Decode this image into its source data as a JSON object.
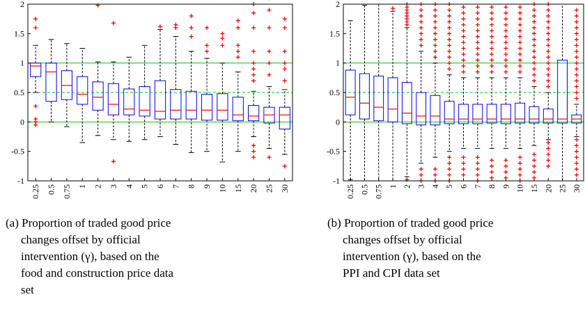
{
  "chart_data": [
    {
      "type": "box",
      "categories": [
        "0.25",
        "0.5",
        "0.75",
        "1",
        "2",
        "3",
        "4",
        "5",
        "6",
        "7",
        "8",
        "9",
        "10",
        "15",
        "20",
        "25",
        "30"
      ],
      "boxes": [
        {
          "whislo": 0.5,
          "q1": 0.77,
          "med": 0.95,
          "q3": 1.0,
          "whishi": 1.3,
          "fliers": [
            1.75,
            1.6,
            0.27,
            0.05,
            0.0,
            -0.05
          ]
        },
        {
          "whislo": 0.0,
          "q1": 0.35,
          "med": 0.85,
          "q3": 1.0,
          "whishi": 1.4,
          "fliers": []
        },
        {
          "whislo": -0.08,
          "q1": 0.38,
          "med": 0.62,
          "q3": 0.87,
          "whishi": 1.33,
          "fliers": []
        },
        {
          "whislo": -0.35,
          "q1": 0.3,
          "med": 0.47,
          "q3": 0.77,
          "whishi": 1.25,
          "fliers": []
        },
        {
          "whislo": -0.23,
          "q1": 0.2,
          "med": 0.42,
          "q3": 0.68,
          "whishi": 1.02,
          "fliers": [
            1.98
          ]
        },
        {
          "whislo": -0.3,
          "q1": 0.12,
          "med": 0.3,
          "q3": 0.65,
          "whishi": 1.02,
          "fliers": [
            1.68,
            -0.67
          ]
        },
        {
          "whislo": -0.33,
          "q1": 0.12,
          "med": 0.22,
          "q3": 0.56,
          "whishi": 1.1,
          "fliers": []
        },
        {
          "whislo": -0.3,
          "q1": 0.1,
          "med": 0.2,
          "q3": 0.6,
          "whishi": 1.3,
          "fliers": []
        },
        {
          "whislo": -0.25,
          "q1": 0.05,
          "med": 0.18,
          "q3": 0.7,
          "whishi": 1.57,
          "fliers": [
            1.62
          ]
        },
        {
          "whislo": -0.38,
          "q1": 0.05,
          "med": 0.2,
          "q3": 0.55,
          "whishi": 1.45,
          "fliers": [
            1.6,
            1.65
          ]
        },
        {
          "whislo": -0.52,
          "q1": 0.05,
          "med": 0.2,
          "q3": 0.52,
          "whishi": 1.2,
          "fliers": [
            1.45,
            1.6,
            1.8
          ]
        },
        {
          "whislo": -0.5,
          "q1": 0.03,
          "med": 0.2,
          "q3": 0.47,
          "whishi": 1.08,
          "fliers": [
            1.2,
            1.3,
            1.6
          ]
        },
        {
          "whislo": -0.68,
          "q1": 0.03,
          "med": 0.2,
          "q3": 0.48,
          "whishi": 1.0,
          "fliers": [
            1.3,
            1.42,
            1.5
          ]
        },
        {
          "whislo": -0.5,
          "q1": 0.02,
          "med": 0.12,
          "q3": 0.42,
          "whishi": 0.85,
          "fliers": [
            1.1,
            1.2,
            1.3,
            1.6,
            1.72
          ]
        },
        {
          "whislo": -0.25,
          "q1": 0.02,
          "med": 0.1,
          "q3": 0.28,
          "whishi": 0.52,
          "fliers": [
            0.7,
            0.8,
            0.9,
            1.0,
            1.2,
            1.6,
            1.85,
            2.0,
            -0.4,
            -0.5,
            -0.6
          ]
        },
        {
          "whislo": -0.45,
          "q1": -0.02,
          "med": 0.12,
          "q3": 0.25,
          "whishi": 0.6,
          "fliers": [
            0.8,
            1.0,
            1.2,
            1.6,
            1.9,
            -0.6
          ]
        },
        {
          "whislo": -0.55,
          "q1": -0.12,
          "med": 0.12,
          "q3": 0.25,
          "whishi": 0.55,
          "fliers": [
            0.7,
            0.9,
            1.0,
            1.2,
            1.6,
            1.75,
            -0.75
          ]
        }
      ],
      "ylim": [
        -1,
        2
      ],
      "yticks": [
        -1,
        -0.5,
        0,
        0.5,
        1,
        1.5,
        2
      ],
      "reference_lines": [
        {
          "value": 0,
          "style": "solid"
        },
        {
          "value": 0.5,
          "style": "dashed"
        },
        {
          "value": 1,
          "style": "solid"
        }
      ],
      "box_color": "#0000ff",
      "median_color": "#ff0000",
      "flier_color": "#ff0000",
      "reference_color": "#00cc00",
      "caption": [
        "(a) Proportion of traded good price",
        "changes offset by official",
        "intervention (γ), based on the",
        "food and construction price data",
        "set"
      ]
    },
    {
      "type": "box",
      "categories": [
        "0.25",
        "0.5",
        "0.75",
        "1",
        "2",
        "3",
        "4",
        "5",
        "6",
        "7",
        "8",
        "9",
        "10",
        "15",
        "20",
        "25",
        "30"
      ],
      "boxes": [
        {
          "whislo": -0.98,
          "q1": 0.12,
          "med": 0.42,
          "q3": 0.88,
          "whishi": 1.72,
          "fliers": []
        },
        {
          "whislo": -1,
          "q1": 0.05,
          "med": 0.32,
          "q3": 0.82,
          "whishi": 1.98,
          "fliers": []
        },
        {
          "whislo": -1,
          "q1": 0.02,
          "med": 0.25,
          "q3": 0.78,
          "whishi": 2,
          "fliers": []
        },
        {
          "whislo": -1,
          "q1": 0.0,
          "med": 0.22,
          "q3": 0.75,
          "whishi": 1.88,
          "fliers": [
            1.93
          ]
        },
        {
          "whislo": -0.93,
          "q1": -0.03,
          "med": 0.15,
          "q3": 0.67,
          "whishi": 1.6,
          "fliers": [
            1.65,
            1.7,
            1.75,
            1.8,
            1.85,
            1.9,
            1.95,
            2.0,
            -0.98
          ]
        },
        {
          "whislo": -0.7,
          "q1": -0.05,
          "med": 0.1,
          "q3": 0.5,
          "whishi": 1.2,
          "fliers": [
            1.3,
            1.4,
            1.5,
            1.6,
            1.7,
            1.8,
            1.9,
            2.0,
            -0.8,
            -0.9,
            -1.0
          ]
        },
        {
          "whislo": -0.6,
          "q1": -0.05,
          "med": 0.1,
          "q3": 0.45,
          "whishi": 1.0,
          "fliers": [
            1.1,
            1.2,
            1.3,
            1.4,
            1.5,
            1.6,
            1.7,
            1.8,
            1.9,
            2.0,
            -0.8,
            -0.9,
            -1.0
          ]
        },
        {
          "whislo": -0.5,
          "q1": -0.03,
          "med": 0.05,
          "q3": 0.35,
          "whishi": 0.8,
          "fliers": [
            0.9,
            1.0,
            1.1,
            1.2,
            1.3,
            1.4,
            1.5,
            1.6,
            1.7,
            1.8,
            1.9,
            2.0,
            -0.6,
            -0.7,
            -0.8,
            -0.9,
            -1.0
          ]
        },
        {
          "whislo": -0.45,
          "q1": -0.03,
          "med": 0.05,
          "q3": 0.3,
          "whishi": 0.75,
          "fliers": [
            0.85,
            0.95,
            1.05,
            1.15,
            1.25,
            1.35,
            1.45,
            1.55,
            1.65,
            1.75,
            1.85,
            1.95,
            -0.6,
            -0.7,
            -0.8,
            -0.9
          ]
        },
        {
          "whislo": -0.45,
          "q1": -0.03,
          "med": 0.05,
          "q3": 0.3,
          "whishi": 0.75,
          "fliers": [
            0.85,
            0.95,
            1.05,
            1.15,
            1.25,
            1.35,
            1.45,
            1.55,
            1.65,
            1.75,
            1.85,
            1.95,
            -0.6,
            -0.7,
            -0.8,
            -0.9,
            -1.0
          ]
        },
        {
          "whislo": -0.45,
          "q1": -0.02,
          "med": 0.05,
          "q3": 0.3,
          "whishi": 0.75,
          "fliers": [
            0.85,
            0.95,
            1.05,
            1.15,
            1.25,
            1.35,
            1.45,
            1.55,
            1.65,
            1.75,
            1.85,
            1.95,
            -0.65,
            -0.75,
            -0.85,
            -0.95
          ]
        },
        {
          "whislo": -0.45,
          "q1": -0.03,
          "med": 0.05,
          "q3": 0.3,
          "whishi": 0.75,
          "fliers": [
            0.85,
            0.95,
            1.05,
            1.15,
            1.25,
            1.35,
            1.45,
            1.55,
            1.65,
            1.75,
            1.85,
            1.95,
            -0.65,
            -0.75,
            -0.85,
            -0.95
          ]
        },
        {
          "whislo": -0.45,
          "q1": -0.02,
          "med": 0.05,
          "q3": 0.32,
          "whishi": 0.75,
          "fliers": [
            0.85,
            0.95,
            1.05,
            1.15,
            1.25,
            1.35,
            1.45,
            1.55,
            1.65,
            1.75,
            1.85,
            1.95,
            -0.6,
            -0.7,
            -0.8,
            -0.9,
            -1.0
          ]
        },
        {
          "whislo": -0.4,
          "q1": -0.02,
          "med": 0.05,
          "q3": 0.26,
          "whishi": 0.6,
          "fliers": [
            0.7,
            0.8,
            0.9,
            1.0,
            1.1,
            1.2,
            1.3,
            1.4,
            1.5,
            1.6,
            1.7,
            1.8,
            1.9,
            2.0,
            -0.55,
            -0.65,
            -0.75,
            -0.85,
            -0.95
          ]
        },
        {
          "whislo": -0.3,
          "q1": -0.02,
          "med": 0.05,
          "q3": 0.22,
          "whishi": 0.5,
          "fliers": [
            0.6,
            0.7,
            0.8,
            0.9,
            1.0,
            1.1,
            1.2,
            1.3,
            1.4,
            1.5,
            1.6,
            1.7,
            1.8,
            1.9,
            2.0,
            -0.35,
            -0.45,
            -0.55,
            -0.65,
            -0.75
          ]
        },
        {
          "whislo": -1,
          "q1": -0.02,
          "med": 0.05,
          "q3": 1.05,
          "whishi": 2,
          "fliers": []
        },
        {
          "whislo": -0.25,
          "q1": -0.02,
          "med": 0.05,
          "q3": 0.12,
          "whishi": 0.3,
          "fliers": [
            0.4,
            0.5,
            0.6,
            0.7,
            0.8,
            0.9,
            1.0,
            1.1,
            1.2,
            1.3,
            1.4,
            1.5,
            1.6,
            1.7,
            1.8,
            1.9,
            -0.3,
            -0.4,
            -0.5,
            -0.6,
            -0.7,
            -0.8,
            -0.9
          ]
        }
      ],
      "ylim": [
        -1,
        2
      ],
      "yticks": [
        -1,
        -0.5,
        0,
        0.5,
        1,
        1.5,
        2
      ],
      "reference_lines": [
        {
          "value": 0,
          "style": "solid"
        },
        {
          "value": 0.5,
          "style": "dashed"
        },
        {
          "value": 1,
          "style": "solid"
        }
      ],
      "box_color": "#0000ff",
      "median_color": "#ff0000",
      "flier_color": "#ff0000",
      "reference_color": "#00cc00",
      "caption": [
        "(b) Proportion of traded good price",
        "changes offset by official",
        "intervention (γ), based on the",
        "PPI and CPI data set"
      ]
    }
  ]
}
